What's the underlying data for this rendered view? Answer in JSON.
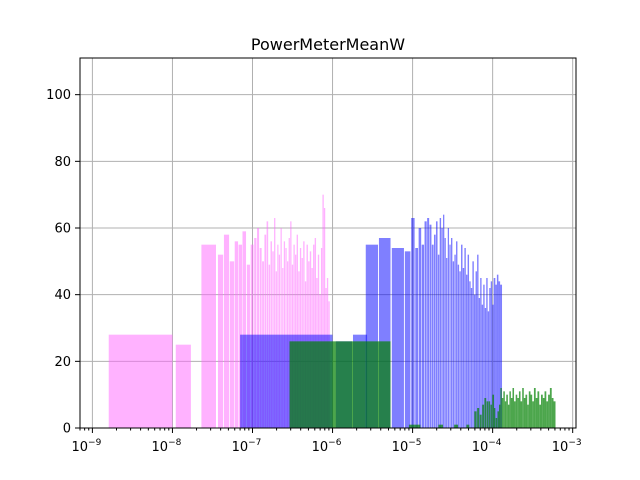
{
  "chart_data": {
    "type": "bar",
    "title": "PowerMeterMeanW",
    "xlabel": "",
    "ylabel": "",
    "xscale": "log",
    "xlim": [
      7e-10,
      0.0011
    ],
    "ylim": [
      0,
      111
    ],
    "grid": true,
    "x_ticks": [
      {
        "base": "10",
        "exp": "−9",
        "value": 1e-09
      },
      {
        "base": "10",
        "exp": "−8",
        "value": 1e-08
      },
      {
        "base": "10",
        "exp": "−7",
        "value": 1e-07
      },
      {
        "base": "10",
        "exp": "−6",
        "value": 1e-06
      },
      {
        "base": "10",
        "exp": "−5",
        "value": 1e-05
      },
      {
        "base": "10",
        "exp": "−4",
        "value": 0.0001
      },
      {
        "base": "10",
        "exp": "−3",
        "value": 0.001
      }
    ],
    "y_ticks": [
      "0",
      "20",
      "40",
      "60",
      "80",
      "100"
    ],
    "series": [
      {
        "color": "#ff66ff",
        "opacity": 0.5,
        "bins": [
          [
            1.6e-09,
            1e-08,
            28
          ],
          [
            1.1e-08,
            1.7e-08,
            25
          ],
          [
            2.3e-08,
            3.5e-08,
            55
          ],
          [
            3.7e-08,
            4.3e-08,
            52
          ],
          [
            4.4e-08,
            5.1e-08,
            58
          ],
          [
            5.2e-08,
            5.9e-08,
            50
          ],
          [
            6e-08,
            6.6e-08,
            56
          ],
          [
            6.7e-08,
            7.4e-08,
            55
          ],
          [
            7.5e-08,
            8.3e-08,
            59
          ],
          [
            8.5e-08,
            9.3e-08,
            49
          ],
          [
            9.5e-08,
            1.03e-07,
            55
          ],
          [
            1.05e-07,
            1.12e-07,
            57
          ],
          [
            1.14e-07,
            1.21e-07,
            60
          ],
          [
            1.23e-07,
            1.3e-07,
            54
          ],
          [
            1.32e-07,
            1.39e-07,
            50
          ],
          [
            1.41e-07,
            1.48e-07,
            58
          ],
          [
            1.5e-07,
            1.57e-07,
            62
          ],
          [
            1.59e-07,
            1.66e-07,
            49
          ],
          [
            1.68e-07,
            1.75e-07,
            56
          ],
          [
            1.77e-07,
            1.84e-07,
            53
          ],
          [
            1.86e-07,
            1.93e-07,
            63
          ],
          [
            1.95e-07,
            2.02e-07,
            47
          ],
          [
            2.04e-07,
            2.11e-07,
            55
          ],
          [
            2.13e-07,
            2.21e-07,
            52
          ],
          [
            2.24e-07,
            2.32e-07,
            60
          ],
          [
            2.35e-07,
            2.43e-07,
            48
          ],
          [
            2.46e-07,
            2.55e-07,
            56
          ],
          [
            2.58e-07,
            2.67e-07,
            54
          ],
          [
            2.7e-07,
            2.8e-07,
            50
          ],
          [
            2.83e-07,
            2.93e-07,
            57
          ],
          [
            2.96e-07,
            3.07e-07,
            62
          ],
          [
            3.1e-07,
            3.22e-07,
            49
          ],
          [
            3.25e-07,
            3.37e-07,
            55
          ],
          [
            3.4e-07,
            3.53e-07,
            52
          ],
          [
            3.56e-07,
            3.7e-07,
            58
          ],
          [
            3.73e-07,
            3.88e-07,
            47
          ],
          [
            3.91e-07,
            4.06e-07,
            54
          ],
          [
            4.1e-07,
            4.26e-07,
            51
          ],
          [
            4.3e-07,
            4.47e-07,
            56
          ],
          [
            4.51e-07,
            4.69e-07,
            44
          ],
          [
            4.73e-07,
            4.92e-07,
            55
          ],
          [
            4.96e-07,
            5.16e-07,
            50
          ],
          [
            5.2e-07,
            5.41e-07,
            53
          ],
          [
            5.45e-07,
            5.67e-07,
            48
          ],
          [
            5.71e-07,
            5.94e-07,
            55
          ],
          [
            5.98e-07,
            6.22e-07,
            57
          ],
          [
            6.26e-07,
            6.51e-07,
            45
          ],
          [
            6.55e-07,
            6.81e-07,
            52
          ],
          [
            6.85e-07,
            7.12e-07,
            40
          ],
          [
            7.16e-07,
            7.44e-07,
            54
          ],
          [
            7.48e-07,
            7.77e-07,
            70
          ],
          [
            7.81e-07,
            8.1e-07,
            66
          ],
          [
            8.14e-07,
            8.46e-07,
            42
          ],
          [
            8.5e-07,
            8.83e-07,
            45
          ],
          [
            8.87e-07,
            9.22e-07,
            38
          ]
        ]
      },
      {
        "color": "#0000ff",
        "opacity": 0.5,
        "bins": [
          [
            7e-08,
            1e-06,
            28
          ],
          [
            1.1e-06,
            1.75e-06,
            26
          ],
          [
            1.8e-06,
            2.7e-06,
            28
          ],
          [
            2.6e-06,
            3.7e-06,
            55
          ],
          [
            3.8e-06,
            5.3e-06,
            57
          ],
          [
            5.5e-06,
            7.8e-06,
            54
          ],
          [
            8e-06,
            9.4e-06,
            53
          ],
          [
            9.6e-06,
            1.06e-05,
            63
          ],
          [
            1.08e-05,
            1.17e-05,
            54
          ],
          [
            1.19e-05,
            1.28e-05,
            60
          ],
          [
            1.3e-05,
            1.39e-05,
            55
          ],
          [
            1.41e-05,
            1.5e-05,
            62
          ],
          [
            1.52e-05,
            1.61e-05,
            63
          ],
          [
            1.63e-05,
            1.72e-05,
            61
          ],
          [
            1.74e-05,
            1.83e-05,
            55
          ],
          [
            1.85e-05,
            1.94e-05,
            58
          ],
          [
            1.96e-05,
            2.05e-05,
            62
          ],
          [
            2.07e-05,
            2.16e-05,
            52
          ],
          [
            2.18e-05,
            2.27e-05,
            63
          ],
          [
            2.29e-05,
            2.38e-05,
            60
          ],
          [
            2.4e-05,
            2.49e-05,
            64
          ],
          [
            2.51e-05,
            2.6e-05,
            57
          ],
          [
            2.62e-05,
            2.72e-05,
            51
          ],
          [
            2.75e-05,
            2.85e-05,
            60
          ],
          [
            2.88e-05,
            2.99e-05,
            55
          ],
          [
            3.02e-05,
            3.14e-05,
            57
          ],
          [
            3.17e-05,
            3.3e-05,
            50
          ],
          [
            3.33e-05,
            3.46e-05,
            52
          ],
          [
            3.49e-05,
            3.63e-05,
            56
          ],
          [
            3.66e-05,
            3.81e-05,
            49
          ],
          [
            3.84e-05,
            4e-05,
            47
          ],
          [
            4.03e-05,
            4.2e-05,
            55
          ],
          [
            4.23e-05,
            4.41e-05,
            48
          ],
          [
            4.44e-05,
            4.62e-05,
            54
          ],
          [
            4.65e-05,
            4.84e-05,
            46
          ],
          [
            4.87e-05,
            5.07e-05,
            52
          ],
          [
            5.1e-05,
            5.31e-05,
            44
          ],
          [
            5.34e-05,
            5.56e-05,
            42
          ],
          [
            5.59e-05,
            5.82e-05,
            50
          ],
          [
            5.85e-05,
            6.09e-05,
            40
          ],
          [
            6.12e-05,
            6.37e-05,
            47
          ],
          [
            6.4e-05,
            6.66e-05,
            52
          ],
          [
            6.69e-05,
            6.96e-05,
            39
          ],
          [
            6.99e-05,
            7.27e-05,
            45
          ],
          [
            7.3e-05,
            7.6e-05,
            37
          ],
          [
            7.63e-05,
            7.94e-05,
            43
          ],
          [
            7.97e-05,
            8.29e-05,
            36
          ],
          [
            8.32e-05,
            8.66e-05,
            45
          ],
          [
            8.69e-05,
            9.04e-05,
            35
          ],
          [
            9.07e-05,
            9.44e-05,
            42
          ],
          [
            9.47e-05,
            9.86e-05,
            44
          ],
          [
            9.89e-05,
            0.000103,
            37
          ],
          [
            0.000103,
            0.000108,
            45
          ],
          [
            0.000108,
            0.000113,
            43
          ],
          [
            0.000113,
            0.000118,
            46
          ],
          [
            0.000118,
            0.000124,
            44
          ],
          [
            0.000124,
            0.000131,
            43
          ]
        ]
      },
      {
        "color": "#008000",
        "opacity": 0.7,
        "bins": [
          [
            2.9e-07,
            2.6e-06,
            26
          ],
          [
            2.6e-06,
            5.3e-06,
            26
          ],
          [
            9e-06,
            1.05e-05,
            1
          ],
          [
            1.05e-05,
            1.25e-05,
            1
          ],
          [
            2.1e-05,
            2.4e-05,
            1
          ],
          [
            3.3e-05,
            3.7e-05,
            1
          ],
          [
            4.7e-05,
            5.1e-05,
            1
          ],
          [
            5.9e-05,
            6.3e-05,
            5
          ],
          [
            6.4e-05,
            6.8e-05,
            6
          ],
          [
            6.9e-05,
            7.3e-05,
            4
          ],
          [
            7.4e-05,
            7.8e-05,
            7
          ],
          [
            7.9e-05,
            8.3e-05,
            9
          ],
          [
            8.4e-05,
            8.8e-05,
            8
          ],
          [
            8.9e-05,
            9.3e-05,
            8
          ],
          [
            9.4e-05,
            9.8e-05,
            7
          ],
          [
            9.9e-05,
            0.000104,
            10
          ],
          [
            0.000104,
            0.000108,
            6
          ],
          [
            0.000109,
            0.000114,
            3
          ],
          [
            0.000115,
            0.00012,
            5
          ],
          [
            0.00012,
            0.000125,
            7
          ],
          [
            0.000125,
            0.00013,
            12
          ],
          [
            0.00013,
            0.000136,
            9
          ],
          [
            0.000136,
            0.000142,
            11
          ],
          [
            0.000142,
            0.000148,
            8
          ],
          [
            0.000148,
            0.000155,
            10
          ],
          [
            0.000155,
            0.000162,
            7
          ],
          [
            0.000162,
            0.000169,
            11
          ],
          [
            0.000169,
            0.000177,
            9
          ],
          [
            0.000177,
            0.000185,
            12
          ],
          [
            0.000185,
            0.000194,
            8
          ],
          [
            0.000194,
            0.000203,
            10
          ],
          [
            0.000203,
            0.000213,
            9
          ],
          [
            0.000213,
            0.000223,
            11
          ],
          [
            0.000223,
            0.000234,
            8
          ],
          [
            0.000234,
            0.000245,
            12
          ],
          [
            0.000245,
            0.000257,
            9
          ],
          [
            0.000257,
            0.00027,
            10
          ],
          [
            0.00027,
            0.000283,
            7
          ],
          [
            0.000283,
            0.000297,
            11
          ],
          [
            0.000297,
            0.000312,
            10
          ],
          [
            0.000312,
            0.000328,
            8
          ],
          [
            0.000328,
            0.000345,
            12
          ],
          [
            0.000345,
            0.000363,
            9
          ],
          [
            0.000363,
            0.000382,
            11
          ],
          [
            0.000382,
            0.000402,
            7
          ],
          [
            0.000402,
            0.000423,
            10
          ],
          [
            0.000423,
            0.000445,
            9
          ],
          [
            0.000445,
            0.000468,
            11
          ],
          [
            0.000468,
            0.000493,
            8
          ],
          [
            0.000493,
            0.000519,
            10
          ],
          [
            0.000519,
            0.000547,
            12
          ],
          [
            0.000547,
            0.000576,
            9
          ],
          [
            0.000576,
            0.00061,
            8
          ]
        ]
      }
    ]
  }
}
